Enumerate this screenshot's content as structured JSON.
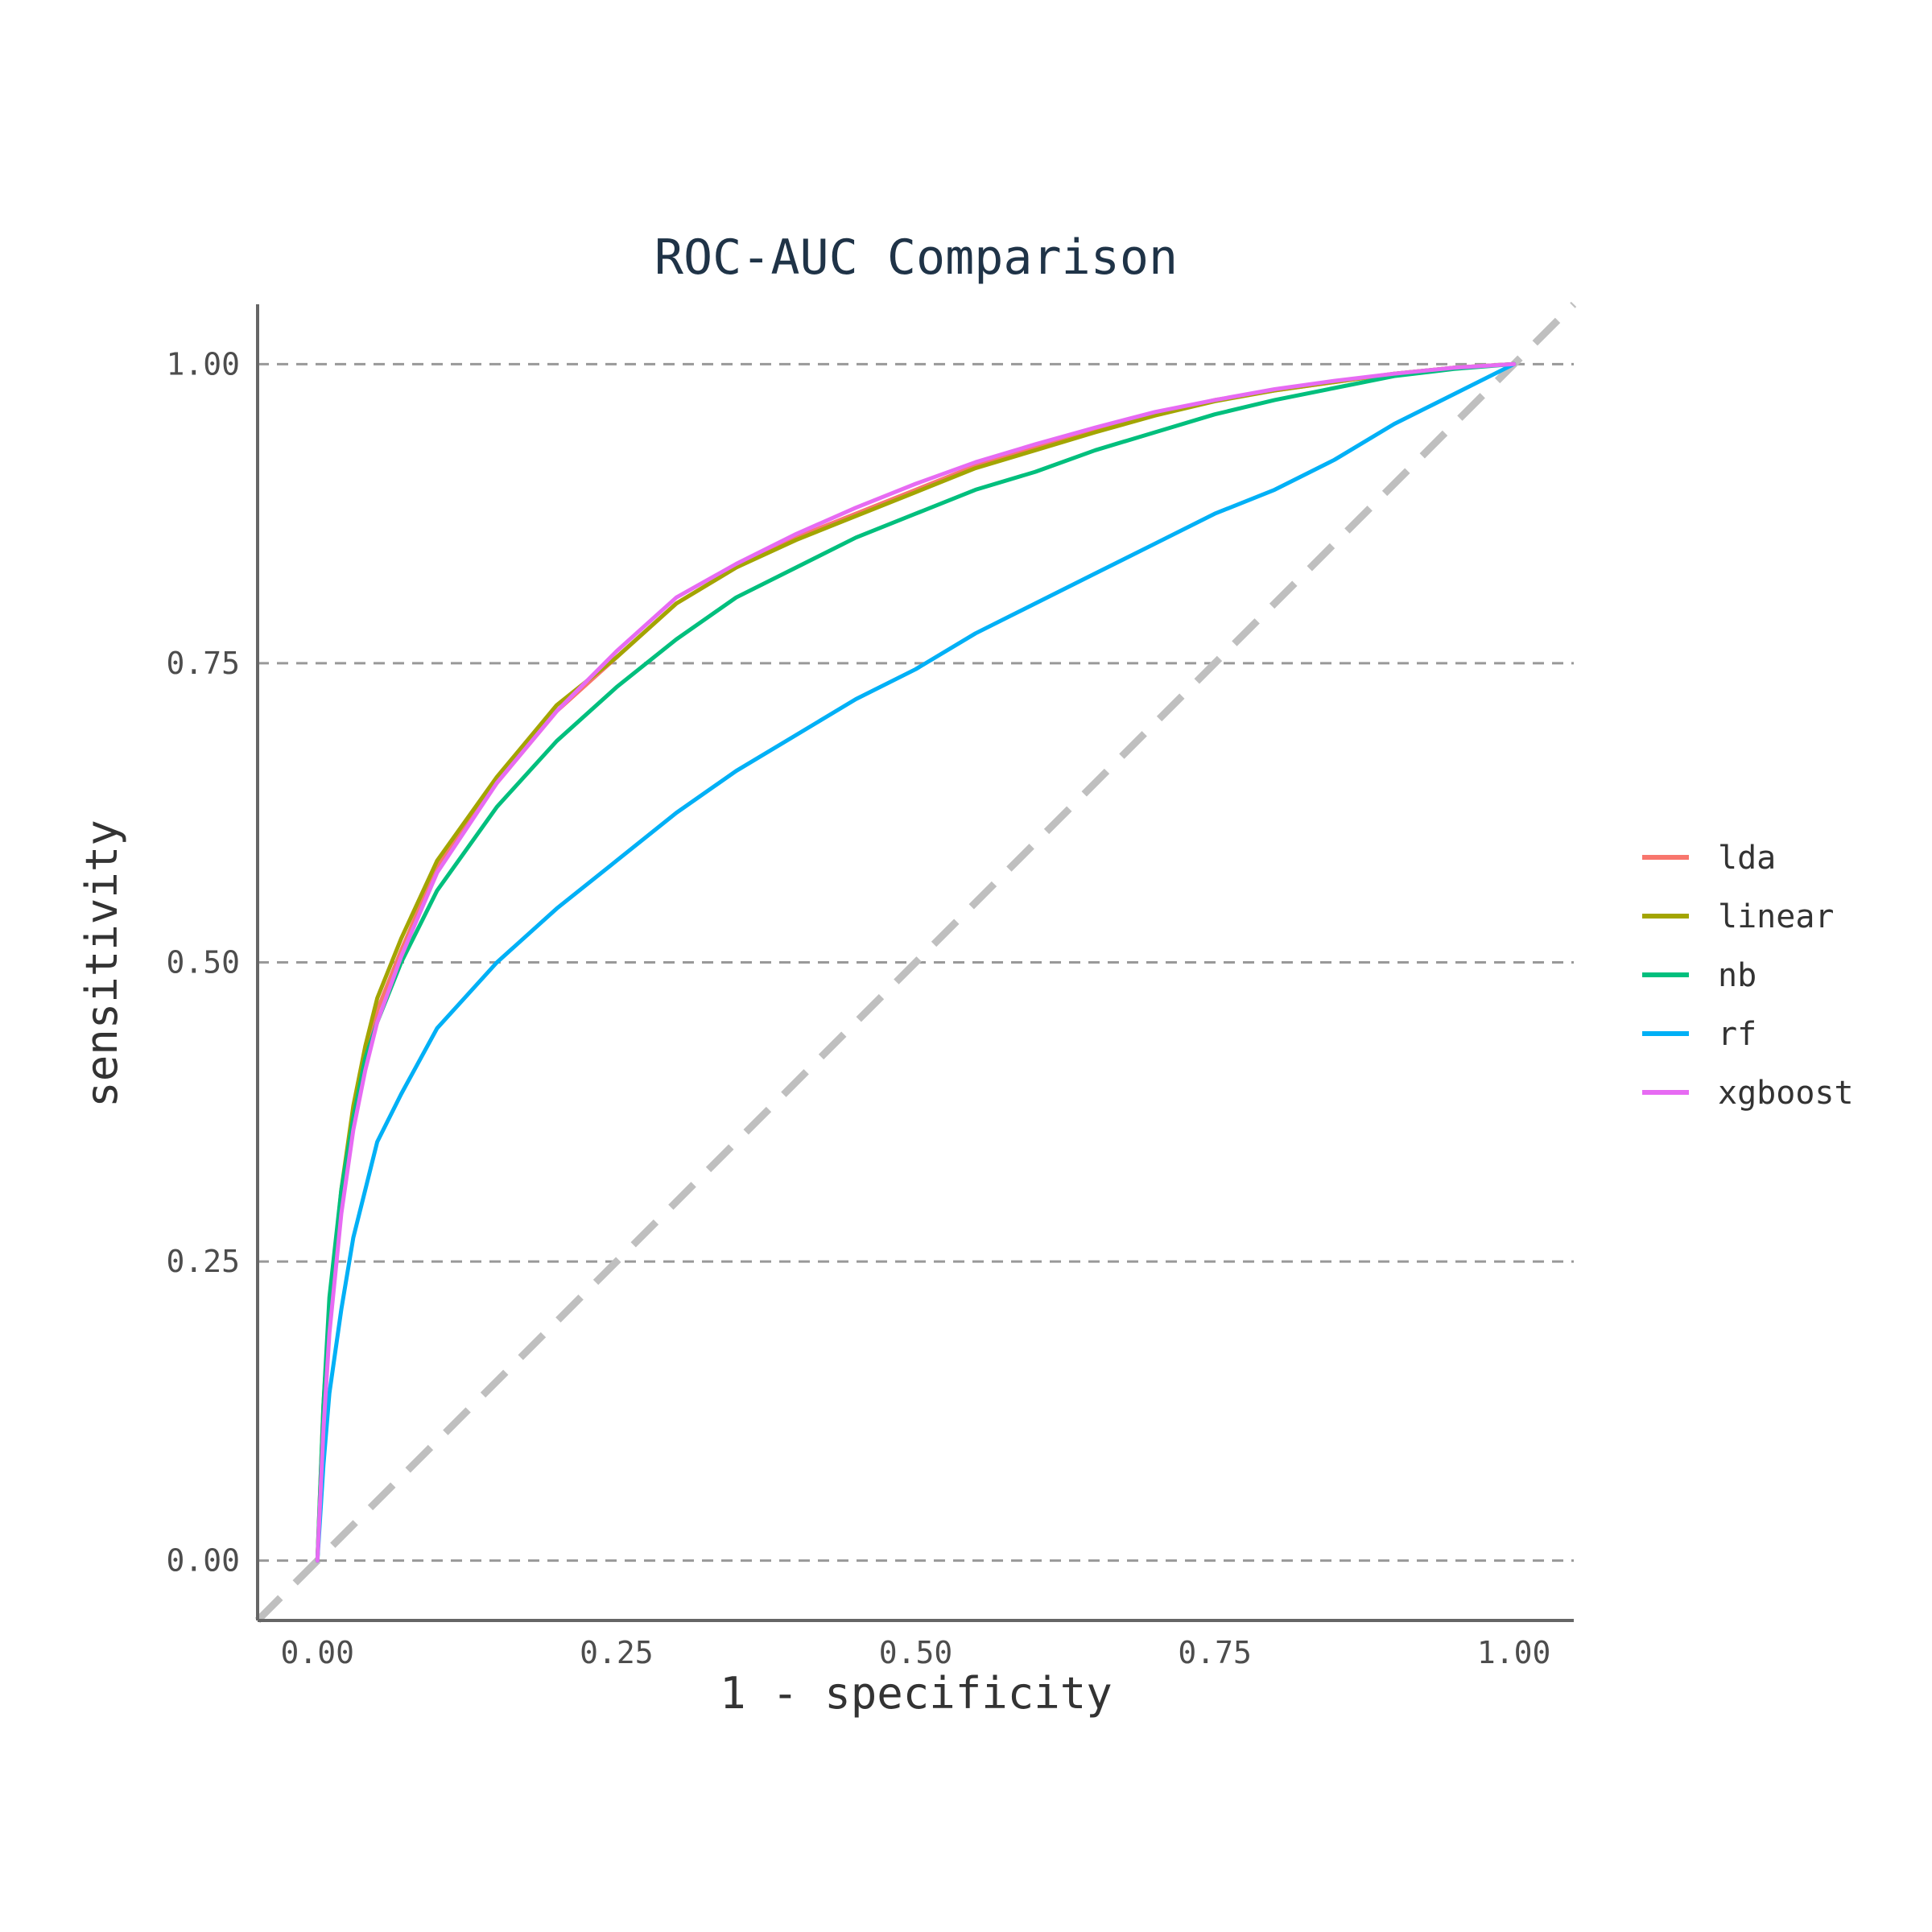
{
  "chart_data": {
    "type": "line",
    "title": "ROC-AUC Comparison",
    "xlabel": "1 - specificity",
    "ylabel": "sensitivity",
    "xlim": [
      -0.05,
      1.05
    ],
    "ylim": [
      -0.05,
      1.05
    ],
    "x_ticks": [
      "0.00",
      "0.25",
      "0.50",
      "0.75",
      "1.00"
    ],
    "y_ticks": [
      "0.00",
      "0.25",
      "0.50",
      "0.75",
      "1.00"
    ],
    "grid": "horizontal dashed",
    "legend_position": "right",
    "reference_line": "diagonal dashed grey",
    "series": [
      {
        "name": "lda",
        "color": "#f8766d",
        "points": [
          [
            0,
            0
          ],
          [
            0.005,
            0.12
          ],
          [
            0.01,
            0.2
          ],
          [
            0.02,
            0.3
          ],
          [
            0.03,
            0.37
          ],
          [
            0.04,
            0.42
          ],
          [
            0.05,
            0.46
          ],
          [
            0.07,
            0.51
          ],
          [
            0.1,
            0.58
          ],
          [
            0.15,
            0.65
          ],
          [
            0.2,
            0.71
          ],
          [
            0.25,
            0.755
          ],
          [
            0.3,
            0.8
          ],
          [
            0.35,
            0.83
          ],
          [
            0.4,
            0.855
          ],
          [
            0.45,
            0.875
          ],
          [
            0.5,
            0.895
          ],
          [
            0.55,
            0.915
          ],
          [
            0.6,
            0.93
          ],
          [
            0.65,
            0.945
          ],
          [
            0.7,
            0.958
          ],
          [
            0.75,
            0.97
          ],
          [
            0.8,
            0.978
          ],
          [
            0.85,
            0.985
          ],
          [
            0.9,
            0.992
          ],
          [
            0.95,
            0.997
          ],
          [
            1,
            1
          ]
        ]
      },
      {
        "name": "linear",
        "color": "#a3a500",
        "points": [
          [
            0,
            0
          ],
          [
            0.005,
            0.13
          ],
          [
            0.01,
            0.21
          ],
          [
            0.02,
            0.31
          ],
          [
            0.03,
            0.38
          ],
          [
            0.04,
            0.43
          ],
          [
            0.05,
            0.47
          ],
          [
            0.07,
            0.52
          ],
          [
            0.1,
            0.585
          ],
          [
            0.15,
            0.655
          ],
          [
            0.2,
            0.715
          ],
          [
            0.25,
            0.755
          ],
          [
            0.3,
            0.8
          ],
          [
            0.35,
            0.83
          ],
          [
            0.4,
            0.853
          ],
          [
            0.45,
            0.873
          ],
          [
            0.5,
            0.893
          ],
          [
            0.55,
            0.913
          ],
          [
            0.6,
            0.928
          ],
          [
            0.65,
            0.943
          ],
          [
            0.7,
            0.957
          ],
          [
            0.75,
            0.969
          ],
          [
            0.8,
            0.978
          ],
          [
            0.85,
            0.985
          ],
          [
            0.9,
            0.992
          ],
          [
            0.95,
            0.997
          ],
          [
            1,
            1
          ]
        ]
      },
      {
        "name": "nb",
        "color": "#00bf7d",
        "points": [
          [
            0,
            0
          ],
          [
            0.005,
            0.13
          ],
          [
            0.01,
            0.22
          ],
          [
            0.02,
            0.31
          ],
          [
            0.03,
            0.37
          ],
          [
            0.04,
            0.42
          ],
          [
            0.05,
            0.45
          ],
          [
            0.07,
            0.5
          ],
          [
            0.1,
            0.56
          ],
          [
            0.15,
            0.63
          ],
          [
            0.2,
            0.685
          ],
          [
            0.25,
            0.73
          ],
          [
            0.3,
            0.77
          ],
          [
            0.35,
            0.805
          ],
          [
            0.4,
            0.83
          ],
          [
            0.45,
            0.855
          ],
          [
            0.5,
            0.875
          ],
          [
            0.55,
            0.895
          ],
          [
            0.6,
            0.91
          ],
          [
            0.65,
            0.928
          ],
          [
            0.7,
            0.943
          ],
          [
            0.75,
            0.958
          ],
          [
            0.8,
            0.97
          ],
          [
            0.85,
            0.98
          ],
          [
            0.9,
            0.99
          ],
          [
            0.95,
            0.996
          ],
          [
            1,
            1
          ]
        ]
      },
      {
        "name": "rf",
        "color": "#00b0f6",
        "points": [
          [
            0,
            0
          ],
          [
            0.005,
            0.08
          ],
          [
            0.01,
            0.14
          ],
          [
            0.02,
            0.21
          ],
          [
            0.03,
            0.27
          ],
          [
            0.04,
            0.31
          ],
          [
            0.05,
            0.35
          ],
          [
            0.07,
            0.39
          ],
          [
            0.1,
            0.445
          ],
          [
            0.15,
            0.5
          ],
          [
            0.2,
            0.545
          ],
          [
            0.25,
            0.585
          ],
          [
            0.3,
            0.625
          ],
          [
            0.35,
            0.66
          ],
          [
            0.4,
            0.69
          ],
          [
            0.45,
            0.72
          ],
          [
            0.5,
            0.745
          ],
          [
            0.55,
            0.775
          ],
          [
            0.6,
            0.8
          ],
          [
            0.65,
            0.825
          ],
          [
            0.7,
            0.85
          ],
          [
            0.75,
            0.875
          ],
          [
            0.8,
            0.895
          ],
          [
            0.85,
            0.92
          ],
          [
            0.9,
            0.95
          ],
          [
            0.95,
            0.975
          ],
          [
            1,
            1
          ]
        ]
      },
      {
        "name": "xgboost",
        "color": "#e76bf3",
        "points": [
          [
            0,
            0
          ],
          [
            0.005,
            0.11
          ],
          [
            0.01,
            0.19
          ],
          [
            0.02,
            0.29
          ],
          [
            0.03,
            0.36
          ],
          [
            0.04,
            0.41
          ],
          [
            0.05,
            0.45
          ],
          [
            0.07,
            0.505
          ],
          [
            0.1,
            0.575
          ],
          [
            0.15,
            0.65
          ],
          [
            0.2,
            0.71
          ],
          [
            0.25,
            0.76
          ],
          [
            0.3,
            0.805
          ],
          [
            0.35,
            0.833
          ],
          [
            0.4,
            0.858
          ],
          [
            0.45,
            0.88
          ],
          [
            0.5,
            0.9
          ],
          [
            0.55,
            0.918
          ],
          [
            0.6,
            0.933
          ],
          [
            0.65,
            0.947
          ],
          [
            0.7,
            0.96
          ],
          [
            0.75,
            0.97
          ],
          [
            0.8,
            0.979
          ],
          [
            0.85,
            0.986
          ],
          [
            0.9,
            0.992
          ],
          [
            0.95,
            0.997
          ],
          [
            1,
            1
          ]
        ]
      }
    ]
  }
}
